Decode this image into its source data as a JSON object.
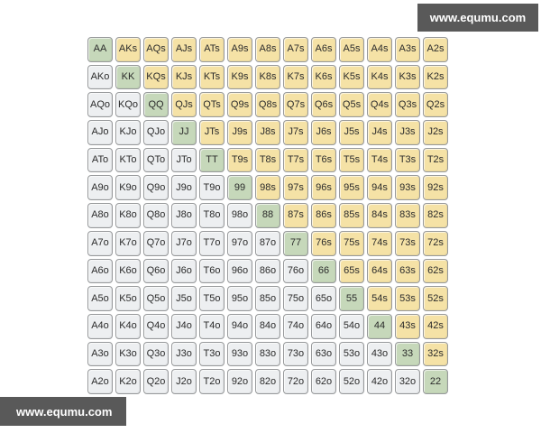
{
  "watermarks": {
    "top_right": {
      "label": "www.equmu.com"
    },
    "bottom_left": {
      "label": "www.equmu.com"
    }
  },
  "colors": {
    "page_bg": "#ffffff",
    "pair_bg": "#c6d8ba",
    "suited_bg": "#f5e2a6",
    "offsuit_bg": "#edeff1",
    "cell_border": "#97999b",
    "cell_text": "#2b2b2b",
    "watermark_bg": "#595959",
    "watermark_text": "#ffffff"
  },
  "chart_data": {
    "type": "heatmap",
    "description_visible": false,
    "grid_size": {
      "rows": 13,
      "cols": 13
    },
    "cell_color_legend": {
      "pair": "#c6d8ba",
      "suited": "#f5e2a6",
      "offsuit": "#edeff1"
    },
    "rows": [
      [
        "AA",
        "AKs",
        "AQs",
        "AJs",
        "ATs",
        "A9s",
        "A8s",
        "A7s",
        "A6s",
        "A5s",
        "A4s",
        "A3s",
        "A2s"
      ],
      [
        "AKo",
        "KK",
        "KQs",
        "KJs",
        "KTs",
        "K9s",
        "K8s",
        "K7s",
        "K6s",
        "K5s",
        "K4s",
        "K3s",
        "K2s"
      ],
      [
        "AQo",
        "KQo",
        "QQ",
        "QJs",
        "QTs",
        "Q9s",
        "Q8s",
        "Q7s",
        "Q6s",
        "Q5s",
        "Q4s",
        "Q3s",
        "Q2s"
      ],
      [
        "AJo",
        "KJo",
        "QJo",
        "JJ",
        "JTs",
        "J9s",
        "J8s",
        "J7s",
        "J6s",
        "J5s",
        "J4s",
        "J3s",
        "J2s"
      ],
      [
        "ATo",
        "KTo",
        "QTo",
        "JTo",
        "TT",
        "T9s",
        "T8s",
        "T7s",
        "T6s",
        "T5s",
        "T4s",
        "T3s",
        "T2s"
      ],
      [
        "A9o",
        "K9o",
        "Q9o",
        "J9o",
        "T9o",
        "99",
        "98s",
        "97s",
        "96s",
        "95s",
        "94s",
        "93s",
        "92s"
      ],
      [
        "A8o",
        "K8o",
        "Q8o",
        "J8o",
        "T8o",
        "98o",
        "88",
        "87s",
        "86s",
        "85s",
        "84s",
        "83s",
        "82s"
      ],
      [
        "A7o",
        "K7o",
        "Q7o",
        "J7o",
        "T7o",
        "97o",
        "87o",
        "77",
        "76s",
        "75s",
        "74s",
        "73s",
        "72s"
      ],
      [
        "A6o",
        "K6o",
        "Q6o",
        "J6o",
        "T6o",
        "96o",
        "86o",
        "76o",
        "66",
        "65s",
        "64s",
        "63s",
        "62s"
      ],
      [
        "A5o",
        "K5o",
        "Q5o",
        "J5o",
        "T5o",
        "95o",
        "85o",
        "75o",
        "65o",
        "55",
        "54s",
        "53s",
        "52s"
      ],
      [
        "A4o",
        "K4o",
        "Q4o",
        "J4o",
        "T4o",
        "94o",
        "84o",
        "74o",
        "64o",
        "54o",
        "44",
        "43s",
        "42s"
      ],
      [
        "A3o",
        "K3o",
        "Q3o",
        "J3o",
        "T3o",
        "93o",
        "83o",
        "73o",
        "63o",
        "53o",
        "43o",
        "33",
        "32s"
      ],
      [
        "A2o",
        "K2o",
        "Q2o",
        "J2o",
        "T2o",
        "92o",
        "82o",
        "72o",
        "62o",
        "52o",
        "42o",
        "32o",
        "22"
      ]
    ]
  }
}
